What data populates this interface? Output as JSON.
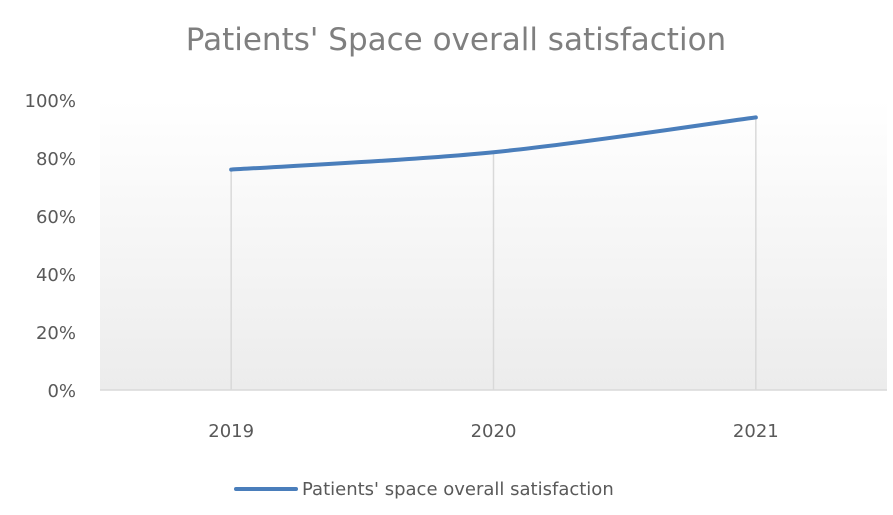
{
  "chart_data": {
    "type": "line",
    "title": "Patients' Space overall satisfaction",
    "xlabel": "",
    "ylabel": "",
    "categories": [
      "2019",
      "2020",
      "2021"
    ],
    "series": [
      {
        "name": "Patients' space overall satisfaction",
        "values": [
          76,
          82,
          94
        ],
        "color": "#4a7ebb"
      }
    ],
    "ylim": [
      0,
      100
    ],
    "yticks": [
      "0%",
      "20%",
      "40%",
      "60%",
      "80%",
      "100%"
    ],
    "grid": "vertical lines at categories",
    "legend": "bottom-center"
  }
}
